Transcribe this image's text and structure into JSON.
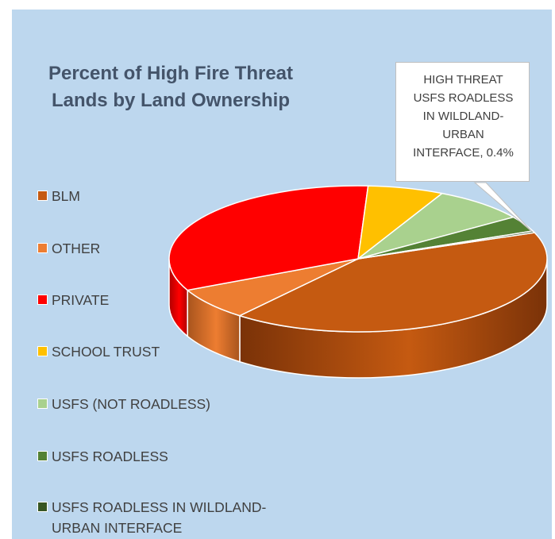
{
  "chart_data": {
    "type": "pie",
    "variant": "3d",
    "title": "Percent of High Fire Threat Lands by Land Ownership",
    "legend_position": "left",
    "categories": [
      "BLM",
      "OTHER",
      "PRIVATE",
      "SCHOOL TRUST",
      "USFS (NOT ROADLESS)",
      "USFS ROADLESS",
      "USFS ROADLESS  IN WILDLAND-URBAN INTERFACE"
    ],
    "values": [
      43.6,
      7.5,
      34.5,
      6.8,
      8.4,
      3.6,
      0.4
    ],
    "colors": [
      "#c55a11",
      "#ed7d31",
      "#ff0000",
      "#ffc000",
      "#a9d18e",
      "#548235",
      "#375623"
    ],
    "side_colors": [
      "#7a3208",
      "#a8541d",
      "#b00000",
      "#b88a00",
      "#7d9c68",
      "#3a5c25",
      "#243a17"
    ],
    "data_labels": [
      {
        "category_index": 6,
        "text": "HIGH THREAT USFS ROADLESS IN WILDLAND-URBAN INTERFACE, 0.4%"
      }
    ]
  },
  "callout": {
    "lines": [
      "HIGH THREAT",
      "USFS ROADLESS",
      "IN WILDLAND-",
      "URBAN",
      "INTERFACE, 0.4%"
    ]
  },
  "legend": [
    {
      "lines": [
        "BLM"
      ]
    },
    {
      "lines": [
        "OTHER"
      ]
    },
    {
      "lines": [
        "PRIVATE"
      ]
    },
    {
      "lines": [
        "SCHOOL TRUST"
      ]
    },
    {
      "lines": [
        "USFS (NOT ROADLESS)"
      ]
    },
    {
      "lines": [
        "USFS ROADLESS"
      ]
    },
    {
      "lines": [
        "USFS ROADLESS  IN WILDLAND-",
        "URBAN INTERFACE"
      ]
    }
  ]
}
